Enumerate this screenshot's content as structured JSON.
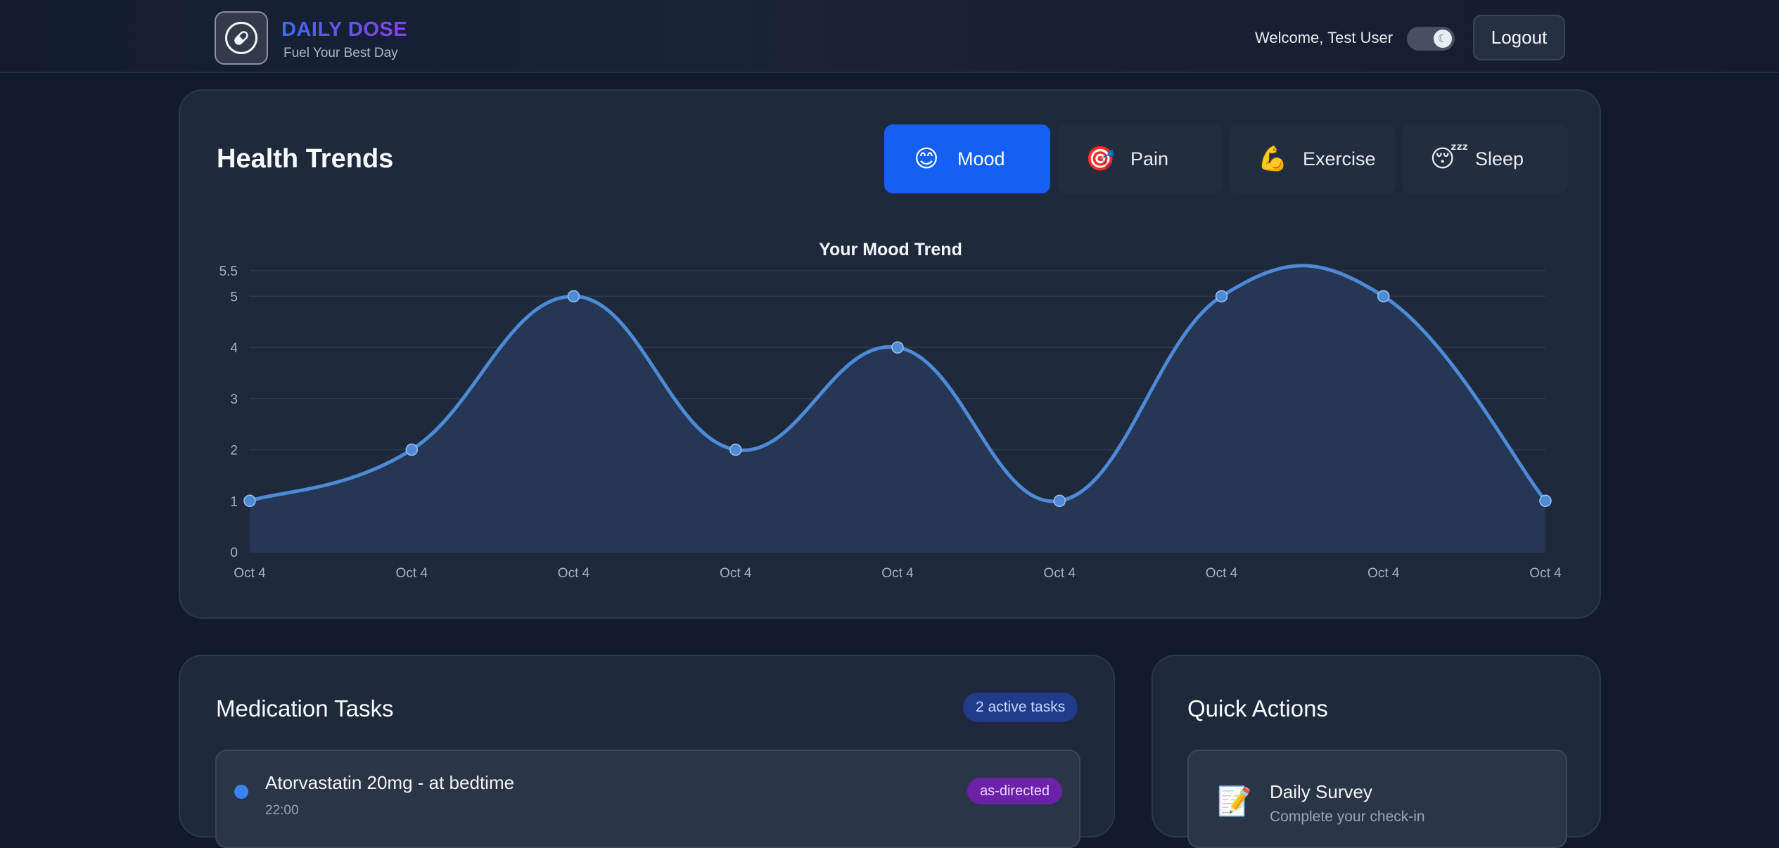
{
  "header": {
    "brand_title": "DAILY DOSE",
    "brand_subtitle": "Fuel Your Best Day",
    "logo_icon": "pill-icon",
    "welcome": "Welcome, Test User",
    "theme_toggle_icon": "moon-icon",
    "logout_label": "Logout"
  },
  "trends": {
    "title": "Health Trends",
    "tabs": [
      {
        "label": "Mood",
        "emoji": "😊",
        "icon": "smile-icon",
        "active": true
      },
      {
        "label": "Pain",
        "emoji": "🎯",
        "icon": "target-icon",
        "active": false
      },
      {
        "label": "Exercise",
        "emoji": "💪",
        "icon": "muscle-icon",
        "active": false
      },
      {
        "label": "Sleep",
        "emoji": "😴",
        "icon": "sleep-icon",
        "active": false
      }
    ]
  },
  "chart_data": {
    "type": "line",
    "title": "Your Mood Trend",
    "x": [
      "Oct 4",
      "Oct 4",
      "Oct 4",
      "Oct 4",
      "Oct 4",
      "Oct 4",
      "Oct 4",
      "Oct 4",
      "Oct 4"
    ],
    "series": [
      {
        "values": [
          1,
          2,
          5,
          2,
          4,
          1,
          5,
          5,
          1
        ],
        "color": "#4f8ad6"
      }
    ],
    "yticks": [
      0,
      1,
      2,
      3,
      4,
      5,
      5.5
    ],
    "ylim": [
      0,
      5.5
    ],
    "grid": true,
    "fill": true,
    "legend": "none"
  },
  "medication": {
    "title": "Medication Tasks",
    "active_badge": "2 active tasks",
    "tasks": [
      {
        "name": "Atorvastatin 20mg - at bedtime",
        "time": "22:00",
        "badge": "as-directed"
      }
    ]
  },
  "quick_actions": {
    "title": "Quick Actions",
    "items": [
      {
        "title": "Daily Survey",
        "desc": "Complete your check-in",
        "emoji": "📝",
        "icon": "memo-icon"
      }
    ]
  }
}
